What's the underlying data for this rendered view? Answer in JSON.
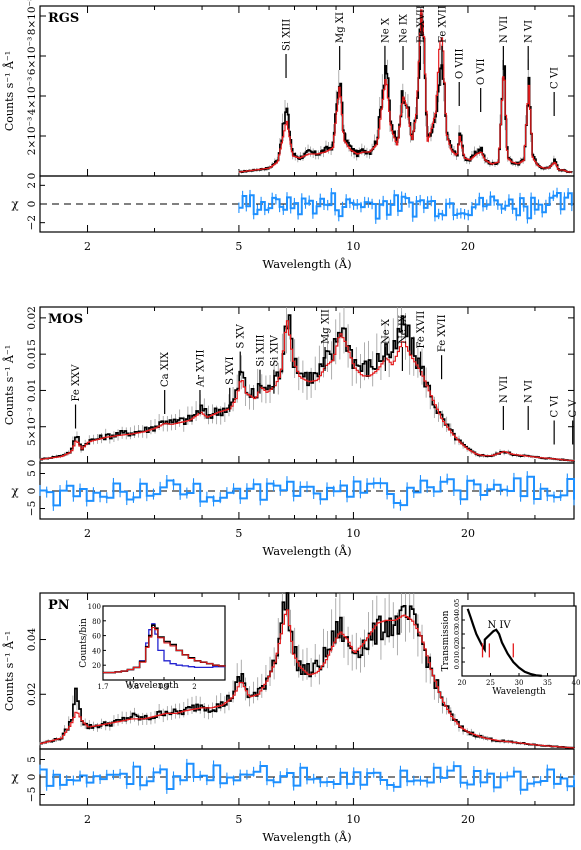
{
  "colors": {
    "data": "#000000",
    "model": "#e41a1c",
    "residual": "#1e90ff",
    "inset_blue": "#2323d0"
  },
  "chart_data": [
    {
      "type": "line",
      "panel": "RGS",
      "title": "RGS",
      "xlabel": "Wavelength (Å)",
      "ylabel": "Counts s⁻¹ Å⁻¹",
      "xscale": "log",
      "xlim": [
        1.5,
        38
      ],
      "ylim": [
        0,
        0.0085
      ],
      "xticks": [
        {
          "v": 2,
          "t": "2"
        },
        {
          "v": 5,
          "t": "5"
        },
        {
          "v": 10,
          "t": "10"
        },
        {
          "v": 20,
          "t": "20"
        }
      ],
      "yticks": [
        {
          "v": 0,
          "t": "0"
        },
        {
          "v": 0.002,
          "t": "2×10⁻³"
        },
        {
          "v": 0.004,
          "t": "4×10⁻³"
        },
        {
          "v": 0.006,
          "t": "6×10⁻³"
        },
        {
          "v": 0.008,
          "t": "8×10⁻³"
        }
      ],
      "lines": [
        {
          "label": "Si XIII",
          "x": 6.65,
          "y": 0.0047
        },
        {
          "label": "Mg XI",
          "x": 9.2,
          "y": 0.0063
        },
        {
          "label": "Ne X",
          "x": 12.1,
          "y": 0.0066
        },
        {
          "label": "Ne IX",
          "x": 13.5,
          "y": 0.0062
        },
        {
          "label": "Fe XVII",
          "x": 15.0,
          "y": 0.0072
        },
        {
          "label": "Fe XVII",
          "x": 17.1,
          "y": 0.007
        },
        {
          "label": "O VIII",
          "x": 18.97,
          "y": 0.0033
        },
        {
          "label": "O VII",
          "x": 21.6,
          "y": 0.003
        },
        {
          "label": "N VII",
          "x": 24.78,
          "y": 0.0058
        },
        {
          "label": "N VI",
          "x": 28.8,
          "y": 0.0057
        },
        {
          "label": "C VI",
          "x": 33.7,
          "y": 0.0028
        }
      ],
      "spectrum_x": [
        5.0,
        5.5,
        6.0,
        6.3,
        6.65,
        6.9,
        7.2,
        7.6,
        8.0,
        8.4,
        8.8,
        9.17,
        9.4,
        9.8,
        10.2,
        10.6,
        11.0,
        11.5,
        12.13,
        12.5,
        13.0,
        13.45,
        13.8,
        14.2,
        14.6,
        15.01,
        15.26,
        15.6,
        16.0,
        16.4,
        16.78,
        17.08,
        17.5,
        18.0,
        18.63,
        18.97,
        19.5,
        20.2,
        21.0,
        21.6,
        22.1,
        23.0,
        24.0,
        24.78,
        25.3,
        26.0,
        27.0,
        28.0,
        28.8,
        29.5,
        30.5,
        31.5,
        32.5,
        33.74,
        34.5,
        35.5,
        36.5,
        37.5
      ],
      "spectrum_data": [
        0.0002,
        0.0003,
        0.0004,
        0.0008,
        0.0034,
        0.0011,
        0.0009,
        0.0012,
        0.0011,
        0.0013,
        0.0015,
        0.0051,
        0.002,
        0.0014,
        0.0011,
        0.0013,
        0.0012,
        0.0018,
        0.0058,
        0.0026,
        0.0016,
        0.0044,
        0.0036,
        0.0018,
        0.003,
        0.008,
        0.0064,
        0.0018,
        0.0022,
        0.0028,
        0.0046,
        0.006,
        0.0022,
        0.0014,
        0.001,
        0.0022,
        0.0009,
        0.0008,
        0.0012,
        0.0014,
        0.0008,
        0.0006,
        0.0007,
        0.0058,
        0.001,
        0.0007,
        0.0006,
        0.0008,
        0.0048,
        0.001,
        0.0005,
        0.0004,
        0.0004,
        0.0008,
        0.0003,
        0.0003,
        0.0002,
        0.0002
      ],
      "spectrum_model": [
        0.0002,
        0.0003,
        0.0004,
        0.0007,
        0.0028,
        0.001,
        0.0009,
        0.0011,
        0.0011,
        0.0012,
        0.0014,
        0.0046,
        0.0018,
        0.0013,
        0.0011,
        0.0012,
        0.0012,
        0.0016,
        0.005,
        0.0024,
        0.0015,
        0.004,
        0.0034,
        0.0017,
        0.0032,
        0.0084,
        0.007,
        0.0017,
        0.0024,
        0.0032,
        0.0066,
        0.007,
        0.0021,
        0.0013,
        0.001,
        0.002,
        0.0009,
        0.0008,
        0.0011,
        0.0012,
        0.0008,
        0.0006,
        0.0007,
        0.0056,
        0.0009,
        0.0007,
        0.0006,
        0.0008,
        0.0046,
        0.0009,
        0.0005,
        0.0004,
        0.0004,
        0.0007,
        0.0003,
        0.0003,
        0.0002,
        0.0002
      ],
      "residual": {
        "ylabel": "χ",
        "ylim": [
          -3,
          3
        ],
        "yticks": [
          {
            "v": -2,
            "t": "−2"
          },
          {
            "v": 0,
            "t": "0"
          },
          {
            "v": 2,
            "t": "2"
          }
        ],
        "xstart": 5.0,
        "xend": 37.5,
        "nsteps": 90,
        "amplitude": 1.6
      }
    },
    {
      "type": "line",
      "panel": "MOS",
      "title": "MOS",
      "xlabel": "Wavelength (Å)",
      "ylabel": "Counts s⁻¹ Å⁻¹",
      "xscale": "log",
      "xlim": [
        1.5,
        38
      ],
      "ylim": [
        0,
        0.0215
      ],
      "xticks": [
        {
          "v": 2,
          "t": "2"
        },
        {
          "v": 5,
          "t": "5"
        },
        {
          "v": 10,
          "t": "10"
        },
        {
          "v": 20,
          "t": "20"
        }
      ],
      "yticks": [
        {
          "v": 0,
          "t": "0"
        },
        {
          "v": 0.005,
          "t": "5×10⁻³"
        },
        {
          "v": 0.01,
          "t": "0.01"
        },
        {
          "v": 0.015,
          "t": "0.015"
        },
        {
          "v": 0.02,
          "t": "0.02"
        }
      ],
      "lines": [
        {
          "label": "Fe XXV",
          "x": 1.86,
          "y": 0.0042
        },
        {
          "label": "Ca XIX",
          "x": 3.19,
          "y": 0.0062
        },
        {
          "label": "Ar XVII",
          "x": 3.95,
          "y": 0.0062
        },
        {
          "label": "S XVI",
          "x": 4.73,
          "y": 0.0065
        },
        {
          "label": "S XV",
          "x": 5.04,
          "y": 0.0115
        },
        {
          "label": "Si XIII",
          "x": 5.68,
          "y": 0.009
        },
        {
          "label": "Si XIV",
          "x": 6.18,
          "y": 0.009
        },
        {
          "label": "Mg XII",
          "x": 8.42,
          "y": 0.0125
        },
        {
          "label": "Ne X",
          "x": 12.13,
          "y": 0.013
        },
        {
          "label": "Ne IX",
          "x": 13.45,
          "y": 0.0125
        },
        {
          "label": "Fe XVII",
          "x": 15.01,
          "y": 0.0115
        },
        {
          "label": "Fe XVII",
          "x": 17.05,
          "y": 0.011
        },
        {
          "label": "N VII",
          "x": 24.78,
          "y": 0.004
        },
        {
          "label": "N VI",
          "x": 28.8,
          "y": 0.004
        },
        {
          "label": "C VI",
          "x": 33.7,
          "y": 0.002
        },
        {
          "label": "C V",
          "x": 40.3,
          "y": 0.002
        }
      ],
      "spectrum_x": [
        1.5,
        1.7,
        1.8,
        1.86,
        1.92,
        2.0,
        2.2,
        2.4,
        2.6,
        2.8,
        3.0,
        3.19,
        3.3,
        3.5,
        3.7,
        3.95,
        4.1,
        4.4,
        4.73,
        4.9,
        5.04,
        5.2,
        5.5,
        5.68,
        5.9,
        6.18,
        6.4,
        6.65,
        6.9,
        7.2,
        7.6,
        8.0,
        8.42,
        8.8,
        9.17,
        9.5,
        10.0,
        10.5,
        11.0,
        11.5,
        12.13,
        12.6,
        13.45,
        14.0,
        15.0,
        16.0,
        17.0,
        18.0,
        19.0,
        20.0,
        21.0,
        22.0,
        23.0,
        24.78,
        26.0,
        28.0,
        30.0,
        33.0,
        36.0,
        38.0
      ],
      "spectrum_data": [
        0.0005,
        0.001,
        0.0016,
        0.004,
        0.002,
        0.003,
        0.0036,
        0.004,
        0.0042,
        0.0045,
        0.005,
        0.006,
        0.0055,
        0.0058,
        0.006,
        0.0075,
        0.0065,
        0.0072,
        0.0078,
        0.0095,
        0.0128,
        0.01,
        0.009,
        0.011,
        0.01,
        0.0112,
        0.013,
        0.021,
        0.015,
        0.0125,
        0.0118,
        0.012,
        0.0142,
        0.015,
        0.0192,
        0.0175,
        0.014,
        0.013,
        0.0132,
        0.014,
        0.0158,
        0.0145,
        0.0195,
        0.0165,
        0.013,
        0.009,
        0.006,
        0.0042,
        0.0028,
        0.0018,
        0.0012,
        0.001,
        0.001,
        0.0016,
        0.0012,
        0.001,
        0.0008,
        0.0006,
        0.0004,
        0.0003
      ],
      "spectrum_model": [
        0.0005,
        0.0009,
        0.0015,
        0.0032,
        0.0019,
        0.0029,
        0.0035,
        0.0038,
        0.004,
        0.0043,
        0.0048,
        0.0055,
        0.0053,
        0.0056,
        0.0059,
        0.007,
        0.0063,
        0.007,
        0.0075,
        0.009,
        0.0118,
        0.0096,
        0.0088,
        0.0105,
        0.0097,
        0.0106,
        0.0122,
        0.02,
        0.0142,
        0.0118,
        0.0112,
        0.0114,
        0.0134,
        0.0142,
        0.018,
        0.0165,
        0.0132,
        0.012,
        0.012,
        0.0128,
        0.0145,
        0.0135,
        0.017,
        0.015,
        0.0125,
        0.009,
        0.006,
        0.0042,
        0.0028,
        0.0018,
        0.0012,
        0.001,
        0.001,
        0.0016,
        0.0012,
        0.001,
        0.0008,
        0.0006,
        0.0004,
        0.0003
      ],
      "residual": {
        "ylabel": "χ",
        "ylim": [
          -8,
          8
        ],
        "yticks": [
          {
            "v": -5,
            "t": "−5"
          },
          {
            "v": 0,
            "t": "0"
          },
          {
            "v": 5,
            "t": "5"
          }
        ],
        "xstart": 1.5,
        "xend": 38,
        "nsteps": 80,
        "amplitude": 4.5
      }
    },
    {
      "type": "line",
      "panel": "PN",
      "title": "PN",
      "xlabel": "Wavelength (Å)",
      "ylabel": "Counts s⁻¹ Å⁻¹",
      "xscale": "log",
      "xlim": [
        1.5,
        38
      ],
      "ylim": [
        0,
        0.057
      ],
      "xticks": [
        {
          "v": 2,
          "t": "2"
        },
        {
          "v": 5,
          "t": "5"
        },
        {
          "v": 10,
          "t": "10"
        },
        {
          "v": 20,
          "t": "20"
        }
      ],
      "yticks": [
        {
          "v": 0.02,
          "t": "0.02"
        },
        {
          "v": 0.04,
          "t": "0.04"
        }
      ],
      "spectrum_x": [
        1.5,
        1.7,
        1.8,
        1.86,
        1.93,
        2.0,
        2.2,
        2.4,
        2.6,
        2.8,
        3.0,
        3.2,
        3.4,
        3.6,
        3.95,
        4.2,
        4.5,
        4.8,
        5.04,
        5.3,
        5.6,
        5.9,
        6.2,
        6.65,
        6.9,
        7.2,
        7.6,
        8.0,
        8.4,
        8.8,
        9.17,
        9.6,
        10.0,
        10.5,
        11.0,
        11.5,
        12.1,
        12.8,
        13.5,
        14.2,
        15.0,
        16.0,
        17.0,
        18.0,
        19.0,
        20.0,
        22.0,
        24.0,
        26.0,
        28.0,
        30.0,
        33.0,
        36.0,
        38.0
      ],
      "spectrum_data": [
        0.002,
        0.004,
        0.01,
        0.022,
        0.01,
        0.008,
        0.009,
        0.01,
        0.012,
        0.011,
        0.012,
        0.014,
        0.013,
        0.014,
        0.016,
        0.015,
        0.016,
        0.02,
        0.027,
        0.019,
        0.02,
        0.026,
        0.034,
        0.057,
        0.036,
        0.03,
        0.028,
        0.03,
        0.034,
        0.04,
        0.045,
        0.038,
        0.036,
        0.038,
        0.04,
        0.043,
        0.046,
        0.045,
        0.048,
        0.047,
        0.04,
        0.028,
        0.018,
        0.012,
        0.008,
        0.006,
        0.004,
        0.003,
        0.0025,
        0.002,
        0.0015,
        0.001,
        0.0006,
        0.0004
      ],
      "spectrum_model": [
        0.002,
        0.004,
        0.009,
        0.014,
        0.01,
        0.008,
        0.009,
        0.01,
        0.011,
        0.011,
        0.012,
        0.013,
        0.013,
        0.014,
        0.015,
        0.015,
        0.016,
        0.019,
        0.025,
        0.019,
        0.02,
        0.025,
        0.032,
        0.052,
        0.035,
        0.03,
        0.027,
        0.028,
        0.032,
        0.038,
        0.043,
        0.04,
        0.035,
        0.038,
        0.042,
        0.046,
        0.047,
        0.047,
        0.049,
        0.047,
        0.041,
        0.028,
        0.018,
        0.012,
        0.008,
        0.006,
        0.004,
        0.003,
        0.0025,
        0.002,
        0.0015,
        0.001,
        0.0006,
        0.0004
      ],
      "residual": {
        "ylabel": "χ",
        "ylim": [
          -8,
          8
        ],
        "yticks": [
          {
            "v": -5,
            "t": "−5"
          },
          {
            "v": 0,
            "t": "0"
          },
          {
            "v": 5,
            "t": "5"
          }
        ],
        "xstart": 1.5,
        "xend": 38,
        "nsteps": 80,
        "amplitude": 4.0
      },
      "insets": [
        {
          "type": "line",
          "xlabel": "Wavelength",
          "ylabel": "Counts/bin",
          "xlim": [
            1.7,
            2.1
          ],
          "ylim": [
            0,
            100
          ],
          "xticks": [
            {
              "v": 1.7,
              "t": "1.7"
            },
            {
              "v": 1.8,
              "t": "1.8"
            },
            {
              "v": 1.9,
              "t": "1.9"
            },
            {
              "v": 2.0,
              "t": "2"
            }
          ],
          "yticks": [
            {
              "v": 20,
              "t": "20"
            },
            {
              "v": 40,
              "t": "40"
            },
            {
              "v": 60,
              "t": "60"
            },
            {
              "v": 80,
              "t": "80"
            },
            {
              "v": 100,
              "t": "100"
            }
          ],
          "x": [
            1.7,
            1.72,
            1.74,
            1.76,
            1.78,
            1.8,
            1.82,
            1.84,
            1.85,
            1.86,
            1.87,
            1.88,
            1.9,
            1.92,
            1.94,
            1.96,
            1.98,
            2.0,
            2.02,
            2.04,
            2.06,
            2.08,
            2.1
          ],
          "data": [
            10,
            10,
            11,
            12,
            14,
            17,
            25,
            45,
            60,
            74,
            70,
            58,
            52,
            48,
            40,
            34,
            30,
            26,
            24,
            22,
            20,
            19,
            18
          ],
          "model": [
            10,
            10,
            11,
            12,
            14,
            17,
            24,
            44,
            58,
            71,
            68,
            57,
            50,
            46,
            40,
            34,
            29,
            26,
            24,
            22,
            20,
            19,
            18
          ],
          "blue": [
            10,
            10,
            11,
            12,
            14,
            17,
            26,
            50,
            68,
            76,
            62,
            40,
            26,
            22,
            20,
            19,
            18,
            17,
            17,
            17,
            18,
            18,
            18
          ]
        },
        {
          "type": "line",
          "xlabel": "Wavelength",
          "ylabel": "Transmission",
          "annotation": "N IV",
          "xlim": [
            20,
            40
          ],
          "ylim": [
            0,
            0.05
          ],
          "xticks": [
            {
              "v": 20,
              "t": "20"
            },
            {
              "v": 25,
              "t": "25"
            },
            {
              "v": 30,
              "t": "30"
            },
            {
              "v": 35,
              "t": "35"
            },
            {
              "v": 40,
              "t": "40"
            }
          ],
          "yticks": [
            {
              "v": 0.01,
              "t": "0.01"
            },
            {
              "v": 0.02,
              "t": "0.02"
            },
            {
              "v": 0.03,
              "t": "0.03"
            },
            {
              "v": 0.04,
              "t": "0.04"
            },
            {
              "v": 0.05,
              "t": "0.05"
            }
          ],
          "x": [
            21,
            21.5,
            22,
            22.5,
            23,
            23.5,
            23.99,
            24.0,
            24.5,
            25,
            25.5,
            26,
            26.5,
            27,
            28,
            29,
            30,
            31,
            32,
            33,
            34
          ],
          "y": [
            0.048,
            0.042,
            0.036,
            0.03,
            0.026,
            0.022,
            0.019,
            0.026,
            0.028,
            0.03,
            0.032,
            0.033,
            0.03,
            0.024,
            0.016,
            0.01,
            0.006,
            0.003,
            0.0015,
            0.0005,
            0.0001
          ],
          "marks": [
            23.6,
            24.8,
            29.0
          ]
        }
      ]
    }
  ]
}
